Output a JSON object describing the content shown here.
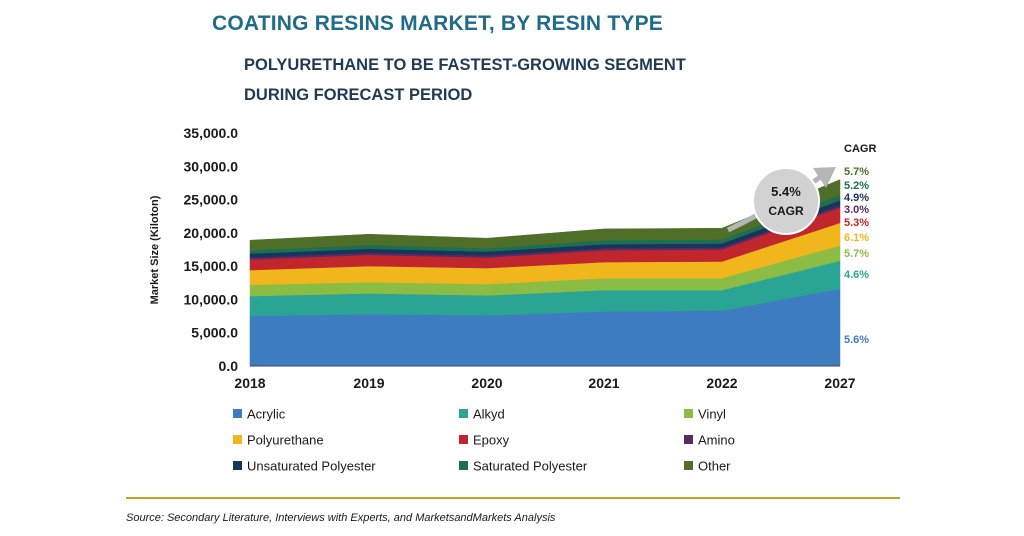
{
  "title": "COATING RESINS MARKET, BY RESIN TYPE",
  "subtitle_lines": [
    "POLYURETHANE TO BE FASTEST-GROWING SEGMENT",
    "DURING FORECAST PERIOD"
  ],
  "source": "Source: Secondary Literature, Interviews with Experts, and MarketsandMarkets Analysis",
  "chart_data": {
    "type": "area",
    "stacked": true,
    "x": [
      "2018",
      "2019",
      "2020",
      "2021",
      "2022",
      "2027"
    ],
    "ylabel": "Market Size (Kiloton)",
    "ylim": [
      0,
      35000
    ],
    "yticks": [
      "0.0",
      "5,000.0",
      "10,000.0",
      "15,000.0",
      "20,000.0",
      "25,000.0",
      "30,000.0",
      "35,000.0"
    ],
    "grid": false,
    "legend_position": "bottom",
    "cagr_header": "CAGR",
    "callout": {
      "line1": "5.4%",
      "line2": "CAGR"
    },
    "series": [
      {
        "name": "Acrylic",
        "color": "#3d7cc0",
        "values": [
          7500,
          7800,
          7600,
          8200,
          8300,
          11600
        ],
        "cagr": "5.6%"
      },
      {
        "name": "Alkyd",
        "color": "#2aa493",
        "values": [
          3000,
          3100,
          3000,
          3200,
          3100,
          4200
        ],
        "cagr": "4.6%"
      },
      {
        "name": "Vinyl",
        "color": "#8bbd45",
        "values": [
          1700,
          1700,
          1700,
          1800,
          1800,
          2300
        ],
        "cagr": "5.7%"
      },
      {
        "name": "Polyurethane",
        "color": "#f1b61c",
        "values": [
          2200,
          2400,
          2400,
          2400,
          2500,
          3400
        ],
        "cagr": "6.1%"
      },
      {
        "name": "Epoxy",
        "color": "#c0262b",
        "values": [
          1600,
          1700,
          1600,
          1800,
          1800,
          2300
        ],
        "cagr": "5.3%"
      },
      {
        "name": "Amino",
        "color": "#5a2a63",
        "values": [
          300,
          300,
          300,
          300,
          300,
          350
        ],
        "cagr": "3.0%"
      },
      {
        "name": "Unsaturated Polyester",
        "color": "#16355c",
        "values": [
          600,
          600,
          600,
          600,
          600,
          750
        ],
        "cagr": "4.9%"
      },
      {
        "name": "Saturated Polyester",
        "color": "#1e6e52",
        "values": [
          500,
          600,
          500,
          600,
          600,
          800
        ],
        "cagr": "5.2%"
      },
      {
        "name": "Other",
        "color": "#4f6f28",
        "values": [
          1500,
          1600,
          1500,
          1700,
          1700,
          2300
        ],
        "cagr": "5.7%"
      }
    ]
  }
}
